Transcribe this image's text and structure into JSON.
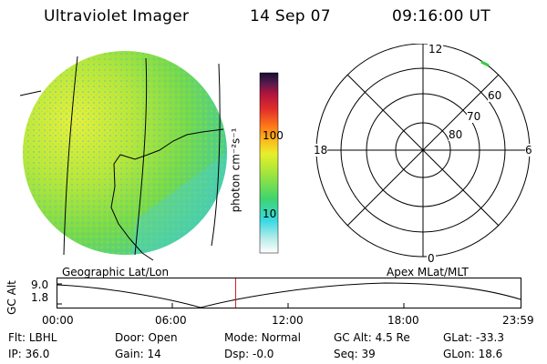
{
  "header": {
    "instrument": "Ultraviolet Imager",
    "date": "14 Sep 07",
    "time": "09:16:00 UT"
  },
  "colorbar": {
    "unit_label": "photon cm⁻²s⁻¹",
    "ticks": [
      "100",
      "10"
    ]
  },
  "polar": {
    "mlt_labels": {
      "top": "12",
      "left": "18",
      "right": "6",
      "bottom": "0"
    },
    "lat_labels": [
      "60",
      "70",
      "80"
    ]
  },
  "panel_labels": {
    "geo": "Geographic Lat/Lon",
    "apex": "Apex MLat/MLT"
  },
  "altitude_plot": {
    "y_label": "GC Alt",
    "y_ticks": [
      "9.0",
      "1.8"
    ],
    "x_ticks": [
      "00:00",
      "06:00",
      "12:00",
      "18:00",
      "23:59"
    ],
    "marker_hour": 9.2667,
    "marker_color": "#d21e1e"
  },
  "status": {
    "filter_label": "Flt:",
    "filter_value": "LBHL",
    "ip_label": "IP:",
    "ip_value": "36.0",
    "door_label": "Door:",
    "door_value": "Open",
    "gain_label": "Gain:",
    "gain_value": "14",
    "mode_label": "Mode:",
    "mode_value": "Normal",
    "dsp_label": "Dsp:",
    "dsp_value": "-0.0",
    "gcalt_label": "GC Alt:",
    "gcalt_value": "4.5 Re",
    "seq_label": "Seq:",
    "seq_value": "39",
    "glat_label": "GLat:",
    "glat_value": "-33.3",
    "glon_label": "GLon:",
    "glon_value": "18.6"
  },
  "colors": {
    "background": "#ffffff",
    "marker": "#d21e1e"
  }
}
